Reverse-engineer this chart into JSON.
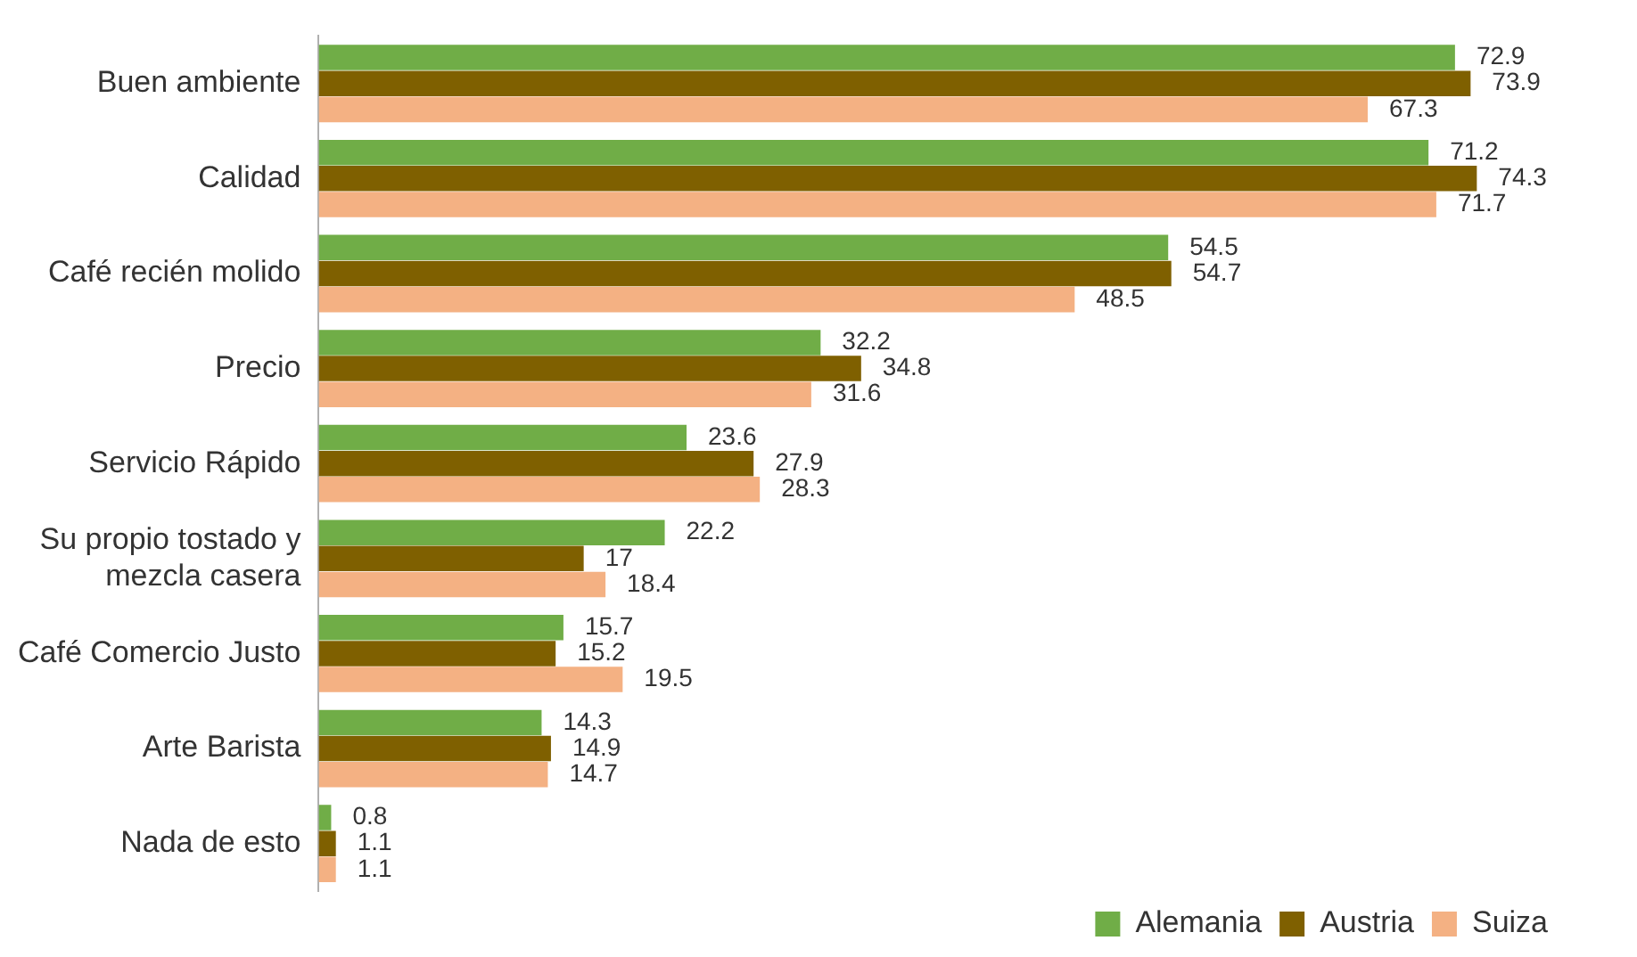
{
  "chart_data": {
    "type": "bar",
    "orientation": "horizontal",
    "categories": [
      "Buen ambiente",
      "Calidad",
      "Café recién molido",
      "Precio",
      "Servicio Rápido",
      "Su propio tostado y mezcla casera",
      "Café Comercio Justo",
      "Arte Barista",
      "Nada de esto"
    ],
    "series": [
      {
        "name": "Alemania",
        "color": "#70ad47",
        "values": [
          72.9,
          71.2,
          54.5,
          32.2,
          23.6,
          22.2,
          15.7,
          14.3,
          0.8
        ]
      },
      {
        "name": "Austria",
        "color": "#7f6000",
        "values": [
          73.9,
          74.3,
          54.7,
          34.8,
          27.9,
          17,
          15.2,
          14.9,
          1.1
        ]
      },
      {
        "name": "Suiza",
        "color": "#f4b183",
        "values": [
          67.3,
          71.7,
          48.5,
          31.6,
          28.3,
          18.4,
          19.5,
          14.7,
          1.1
        ]
      }
    ],
    "data_labels": true,
    "grid": false,
    "legend": "bottom right",
    "tick_labels": "y"
  }
}
